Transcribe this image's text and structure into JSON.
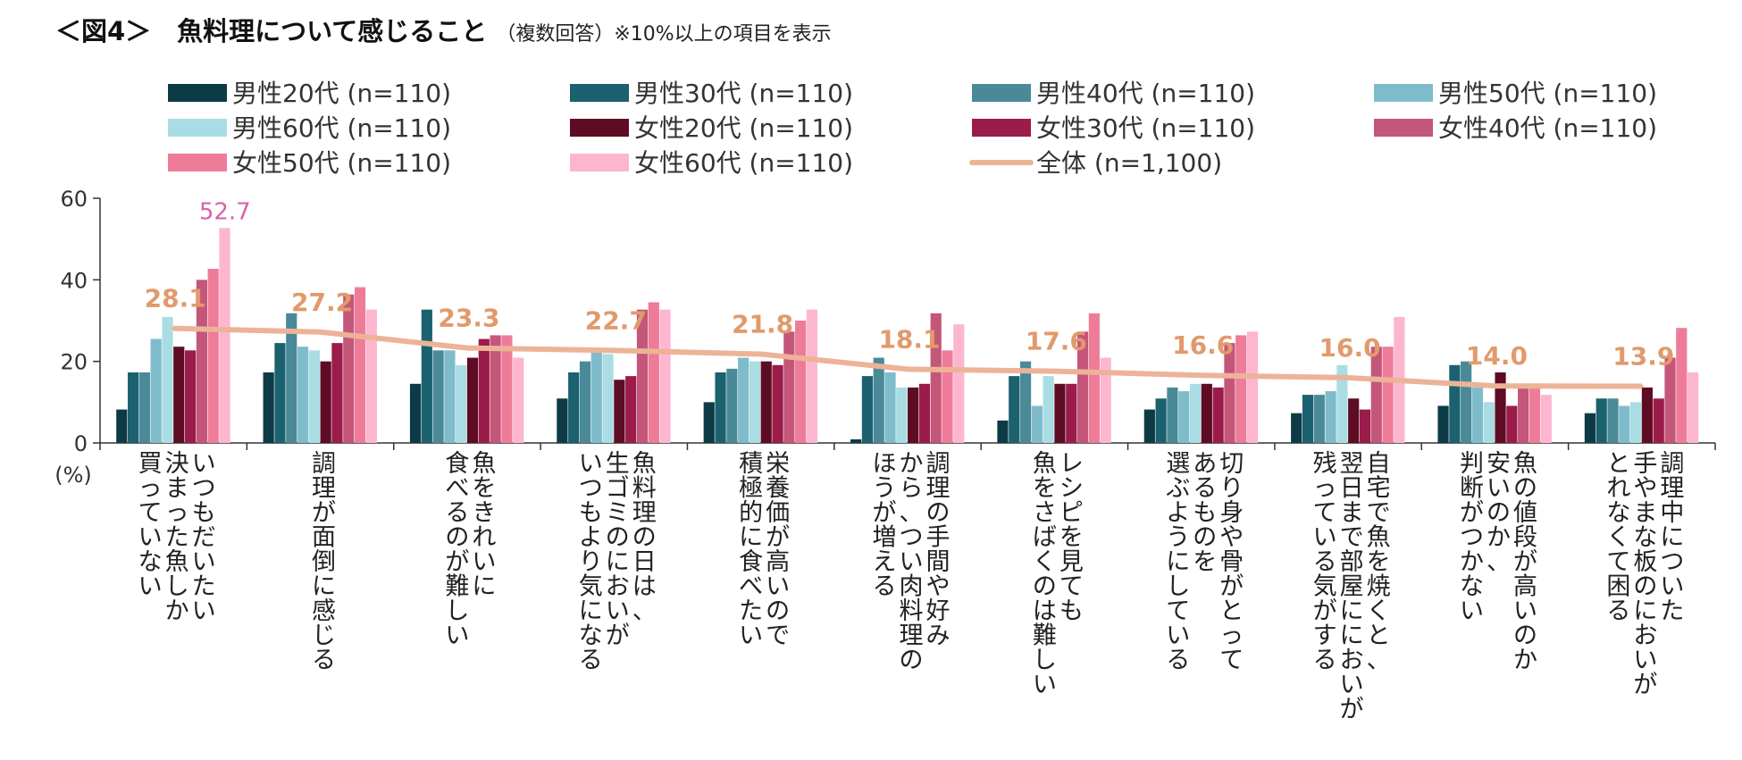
{
  "title": {
    "main": "＜図4＞　魚料理について感じること",
    "sub": "（複数回答）※10%以上の項目を表示"
  },
  "chart_data": {
    "type": "bar",
    "ylabel": "(%)",
    "ylim": [
      0,
      60
    ],
    "yticks": [
      0,
      20,
      40,
      60
    ],
    "grid": false,
    "legend_position": "top",
    "categories": [
      "いつもだいたい決まった魚しか買っていない",
      "調理が面倒に感じる",
      "魚をきれいに食べるのが難しい",
      "魚料理の日は、生ゴミのにおいがいつもより気になる",
      "栄養価が高いので積極的に食べたい",
      "調理の手間や好みから、つい肉料理のほうが増える",
      "レシピを見ても魚をさばくのは難しい",
      "切り身や骨がとってあるものを選ぶようにしている",
      "自宅で魚を焼くと、翌日まで部屋ににおいが残っている気がする",
      "魚の値段が高いのか安いのか、判断がつかない",
      "調理中についた手やまな板のにおいがとれなくて困る"
    ],
    "category_lines": [
      [
        "いつもだいたい",
        "決まった魚しか",
        "買っていない"
      ],
      [
        "調理が面倒に感じる"
      ],
      [
        "魚をきれいに",
        "食べるのが難しい"
      ],
      [
        "魚料理の日は、",
        "生ゴミのにおいが",
        "いつもより気になる"
      ],
      [
        "栄養価が高いので",
        "積極的に食べたい"
      ],
      [
        "調理の手間や好み",
        "から、つい肉料理の",
        "ほうが増える"
      ],
      [
        "レシピを見ても",
        "魚をさばくのは難しい"
      ],
      [
        "切り身や骨がとって",
        "あるものを",
        "選ぶようにしている"
      ],
      [
        "自宅で魚を焼くと、",
        "翌日まで部屋ににおいが",
        "残っている気がする"
      ],
      [
        "魚の値段が高いのか",
        "安いのか、",
        "判断がつかない"
      ],
      [
        "調理中についた",
        "手やまな板のにおいが",
        "とれなくて困る"
      ]
    ],
    "series": [
      {
        "name": "男性20代 (n=110)",
        "color": "#0d3b45",
        "values": [
          8.2,
          17.3,
          14.5,
          10.9,
          10.0,
          0.9,
          5.5,
          8.2,
          7.3,
          9.1,
          7.3
        ]
      },
      {
        "name": "男性30代 (n=110)",
        "color": "#1b6170",
        "values": [
          17.3,
          24.5,
          32.7,
          17.3,
          17.3,
          16.4,
          16.4,
          10.9,
          11.8,
          19.1,
          10.9
        ]
      },
      {
        "name": "男性40代 (n=110)",
        "color": "#4a8a98",
        "values": [
          17.3,
          31.8,
          22.7,
          20.0,
          18.2,
          20.9,
          20.0,
          13.6,
          11.8,
          20.0,
          10.9
        ]
      },
      {
        "name": "男性50代 (n=110)",
        "color": "#7fbccb",
        "values": [
          25.5,
          23.6,
          22.7,
          22.7,
          20.9,
          17.3,
          9.1,
          12.7,
          12.7,
          13.6,
          9.1
        ]
      },
      {
        "name": "男性60代 (n=110)",
        "color": "#a9dde3",
        "values": [
          30.9,
          22.7,
          19.1,
          21.8,
          20.0,
          13.6,
          16.4,
          14.5,
          19.1,
          10.0,
          10.0
        ]
      },
      {
        "name": "女性20代 (n=110)",
        "color": "#5e0c24",
        "values": [
          23.6,
          20.0,
          20.9,
          15.5,
          20.0,
          13.6,
          14.5,
          14.5,
          10.9,
          17.3,
          13.6
        ]
      },
      {
        "name": "女性30代 (n=110)",
        "color": "#9b1c4a",
        "values": [
          22.7,
          24.5,
          25.5,
          16.4,
          19.1,
          14.5,
          14.5,
          13.6,
          8.2,
          9.1,
          10.9
        ]
      },
      {
        "name": "女性40代 (n=110)",
        "color": "#c4567a",
        "values": [
          40.0,
          36.4,
          26.4,
          32.7,
          27.3,
          31.8,
          27.3,
          24.5,
          23.6,
          14.5,
          20.9
        ]
      },
      {
        "name": "女性50代 (n=110)",
        "color": "#ee7c99",
        "values": [
          42.7,
          38.2,
          26.4,
          34.5,
          30.0,
          22.7,
          31.8,
          26.4,
          23.6,
          13.6,
          28.2
        ]
      },
      {
        "name": "女性60代 (n=110)",
        "color": "#fdb6d0",
        "values": [
          52.7,
          32.7,
          20.9,
          32.7,
          32.7,
          29.1,
          20.9,
          27.3,
          30.9,
          11.8,
          17.3
        ]
      }
    ],
    "total_line": {
      "name": "全体 (n=1,100)",
      "color": "#ecb397",
      "values": [
        28.1,
        27.2,
        23.3,
        22.7,
        21.8,
        18.1,
        17.6,
        16.6,
        16.0,
        14.0,
        13.9
      ],
      "labels": [
        "28.1",
        "27.2",
        "23.3",
        "22.7",
        "21.8",
        "18.1",
        "17.6",
        "16.6",
        "16.0",
        "14.0",
        "13.9"
      ],
      "label_color": "#e19a6c"
    },
    "annotations": [
      {
        "text": "52.7",
        "category_index": 0,
        "series_index": 9,
        "value": 52.7,
        "color": "#d761a8"
      }
    ]
  }
}
